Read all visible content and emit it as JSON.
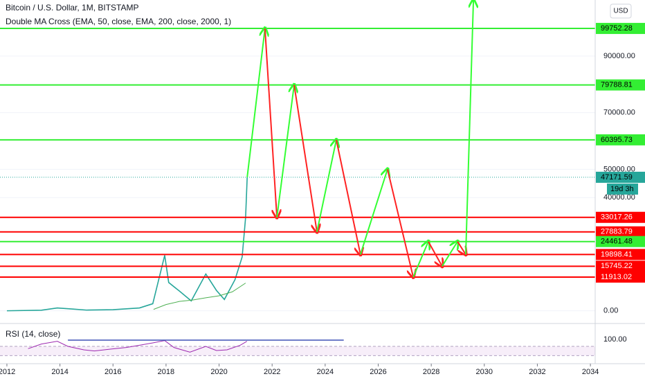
{
  "chart_data": {
    "type": "line",
    "title": "Bitcoin / U.S. Dollar, 1M, BITSTAMP",
    "subtitle": "Double MA Cross (EMA, 50, close, EMA, 200, close, 2000, 1)",
    "currency": "USD",
    "xlim": [
      2011.74,
      2034.18
    ],
    "xticks": [
      2012,
      2014,
      2016,
      2018,
      2020,
      2022,
      2024,
      2026,
      2028,
      2030,
      2032,
      2034
    ],
    "ylim": [
      -4000,
      109800
    ],
    "yticks": [
      {
        "value": 0,
        "label": "0.00"
      },
      {
        "value": 40000,
        "label": "40000.00"
      },
      {
        "value": 50000,
        "label": "50000.00"
      },
      {
        "value": 70000,
        "label": "70000.00"
      },
      {
        "value": 90000,
        "label": "90000.00"
      }
    ],
    "series": [
      {
        "color": "#26a69a",
        "x": [
          2012,
          2013.3,
          2013.9,
          2014.5,
          2015,
          2016,
          2017,
          2017.5,
          2017.95,
          2018.1,
          2018.5,
          2018.95,
          2019.5,
          2019.9,
          2020.2,
          2020.6,
          2020.87,
          2021.0,
          2021.06
        ],
        "values": [
          5,
          200,
          1000,
          600,
          250,
          400,
          1000,
          2500,
          19600,
          10000,
          7000,
          3500,
          13000,
          7200,
          4000,
          11000,
          19000,
          33000,
          47171.59
        ]
      },
      {
        "color": "#4caf50",
        "x": [
          2017.53,
          2018,
          2018.5,
          2019,
          2019.5,
          2020,
          2020.5,
          2021.0
        ],
        "values": [
          500,
          2200,
          3300,
          3800,
          4600,
          5300,
          6700,
          9800
        ]
      }
    ],
    "forecast": {
      "up_color": "#33ff33",
      "down_color": "#ff2222",
      "x": [
        2021.06,
        2021.73,
        2022.18,
        2022.83,
        2023.69,
        2024.42,
        2025.33,
        2026.35,
        2027.32,
        2027.89,
        2028.41,
        2028.99,
        2029.3,
        2029.59
      ],
      "values": [
        47171.59,
        99752.28,
        33017.26,
        79788.81,
        27883.79,
        60395.73,
        19898.41,
        50000,
        11913.02,
        24461.48,
        15745.22,
        24461.48,
        19898.41,
        109800
      ]
    },
    "levels": [
      {
        "value": 99752.28,
        "color": "#33ee33",
        "text_color": "#000000"
      },
      {
        "value": 79788.81,
        "color": "#33ee33",
        "text_color": "#000000"
      },
      {
        "value": 60395.73,
        "color": "#33ee33",
        "text_color": "#000000"
      },
      {
        "value": 33017.26,
        "color": "#ff0000",
        "text_color": "#ffffff"
      },
      {
        "value": 27883.79,
        "color": "#ff0000",
        "text_color": "#ffffff"
      },
      {
        "value": 24461.48,
        "color": "#33ee33",
        "text_color": "#000000"
      },
      {
        "value": 19898.41,
        "color": "#ff0000",
        "text_color": "#ffffff"
      },
      {
        "value": 15745.22,
        "color": "#ff0000",
        "text_color": "#ffffff"
      },
      {
        "value": 11913.02,
        "color": "#ff0000",
        "text_color": "#ffffff"
      }
    ],
    "current": {
      "value": 47171.59,
      "countdown": "19d 3h",
      "color": "#26a69a"
    },
    "rsi": {
      "title": "RSI (14, close)",
      "ylim": [
        1,
        160
      ],
      "yticks": [
        {
          "value": 100,
          "label": "100.00"
        }
      ],
      "band": [
        30,
        70
      ],
      "color": "#9c27b0",
      "x": [
        2012.8,
        2013.3,
        2013.9,
        2014.3,
        2014.9,
        2015.3,
        2015.9,
        2016.5,
        2017,
        2017.5,
        2017.95,
        2018.3,
        2018.9,
        2019.5,
        2019.9,
        2020.3,
        2020.8,
        2021.05
      ],
      "values": [
        60,
        80,
        92,
        70,
        55,
        50,
        58,
        65,
        75,
        85,
        95,
        65,
        45,
        70,
        52,
        55,
        75,
        92
      ],
      "hline": {
        "value": 97,
        "x": [
          2014.3,
          2024.7
        ],
        "color": "#3f51b5"
      }
    }
  }
}
